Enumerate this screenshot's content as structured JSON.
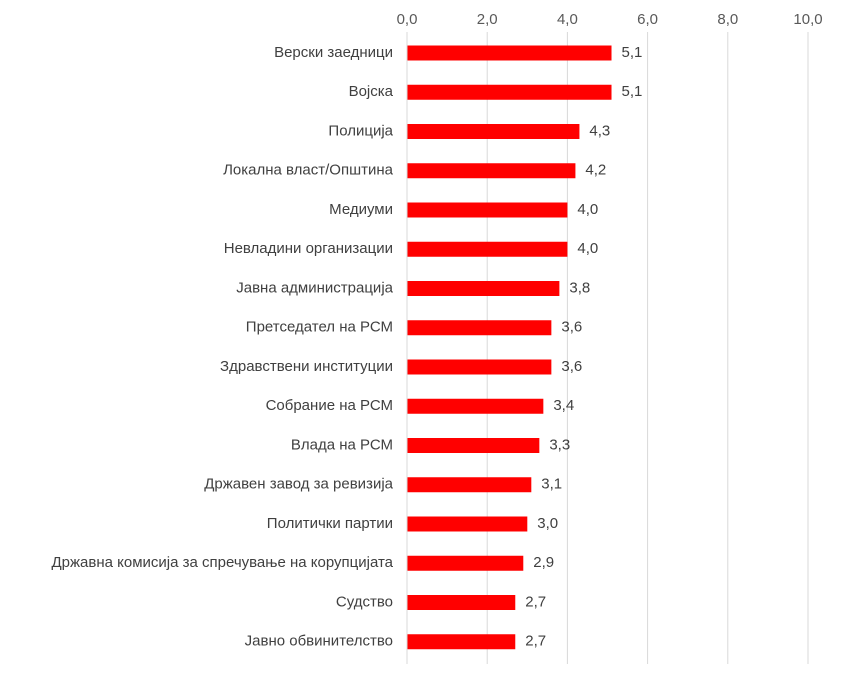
{
  "chart_data": {
    "type": "bar",
    "orientation": "horizontal",
    "title": "",
    "xlabel": "",
    "ylabel": "",
    "xlim": [
      0,
      10
    ],
    "x_ticks": [
      "0,0",
      "2,0",
      "4,0",
      "6,0",
      "8,0",
      "10,0"
    ],
    "x_axis_position": "top",
    "grid": "vertical",
    "legend": "none",
    "bar_color": "#ff0000",
    "categories": [
      "Верски заедници",
      "Војска",
      "Полиција",
      "Локална власт/Општина",
      "Медиуми",
      "Невладини организации",
      "Јавна администрација",
      "Претседател на РСМ",
      "Здравствени институции",
      "Собрание на РСМ",
      "Влада на РСМ",
      "Државен завод за ревизија",
      "Политички партии",
      "Државна комисија за спречување на корупцијата",
      "Судство",
      "Јавно обвинителство"
    ],
    "values": [
      5.1,
      5.1,
      4.3,
      4.2,
      4.0,
      4.0,
      3.8,
      3.6,
      3.6,
      3.4,
      3.3,
      3.1,
      3.0,
      2.9,
      2.7,
      2.7
    ],
    "value_labels": [
      "5,1",
      "5,1",
      "4,3",
      "4,2",
      "4,0",
      "4,0",
      "3,8",
      "3,6",
      "3,6",
      "3,4",
      "3,3",
      "3,1",
      "3,0",
      "2,9",
      "2,7",
      "2,7"
    ]
  }
}
